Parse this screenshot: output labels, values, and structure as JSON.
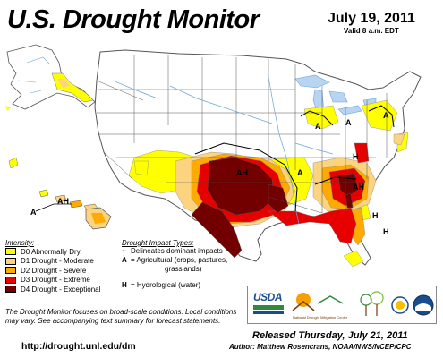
{
  "header": {
    "title": "U.S. Drought Monitor",
    "date": "July 19, 2011",
    "valid": "Valid 8 a.m. EDT"
  },
  "map": {
    "labels": {
      "ah": "AH",
      "a": "A",
      "h": "H",
      "ah_hawaii": "AH",
      "a_hawaii": "A"
    }
  },
  "legend": {
    "heading": "Intensity:",
    "items": [
      {
        "label": "D0 Abnormally Dry",
        "color": "#ffff00"
      },
      {
        "label": "D1 Drought - Moderate",
        "color": "#fcd37f"
      },
      {
        "label": "D2 Drought - Severe",
        "color": "#ffaa00"
      },
      {
        "label": "D3 Drought - Extreme",
        "color": "#e60000"
      },
      {
        "label": "D4 Drought - Exceptional",
        "color": "#730000"
      }
    ]
  },
  "impacts": {
    "heading": "Drought Impact Types:",
    "line_symbol": "~",
    "line_text": "Delineates dominant impacts",
    "a_symbol": "A",
    "a_text": "= Agricultural (crops, pastures,",
    "a_text2": "grasslands)",
    "h_symbol": "H",
    "h_text": "= Hydrological (water)"
  },
  "footer": {
    "note": "The Drought Monitor focuses on broad-scale conditions. Local conditions may vary. See accompanying text summary for forecast statements.",
    "url": "http://drought.unl.edu/dm",
    "released": "Released Thursday, July 21, 2011",
    "author": "Author: Matthew Rosencrans, NOAA/NWS/NCEP/CPC"
  },
  "logos": {
    "usda": "USDA",
    "ndmc": "National Drought Mitigation Center"
  }
}
